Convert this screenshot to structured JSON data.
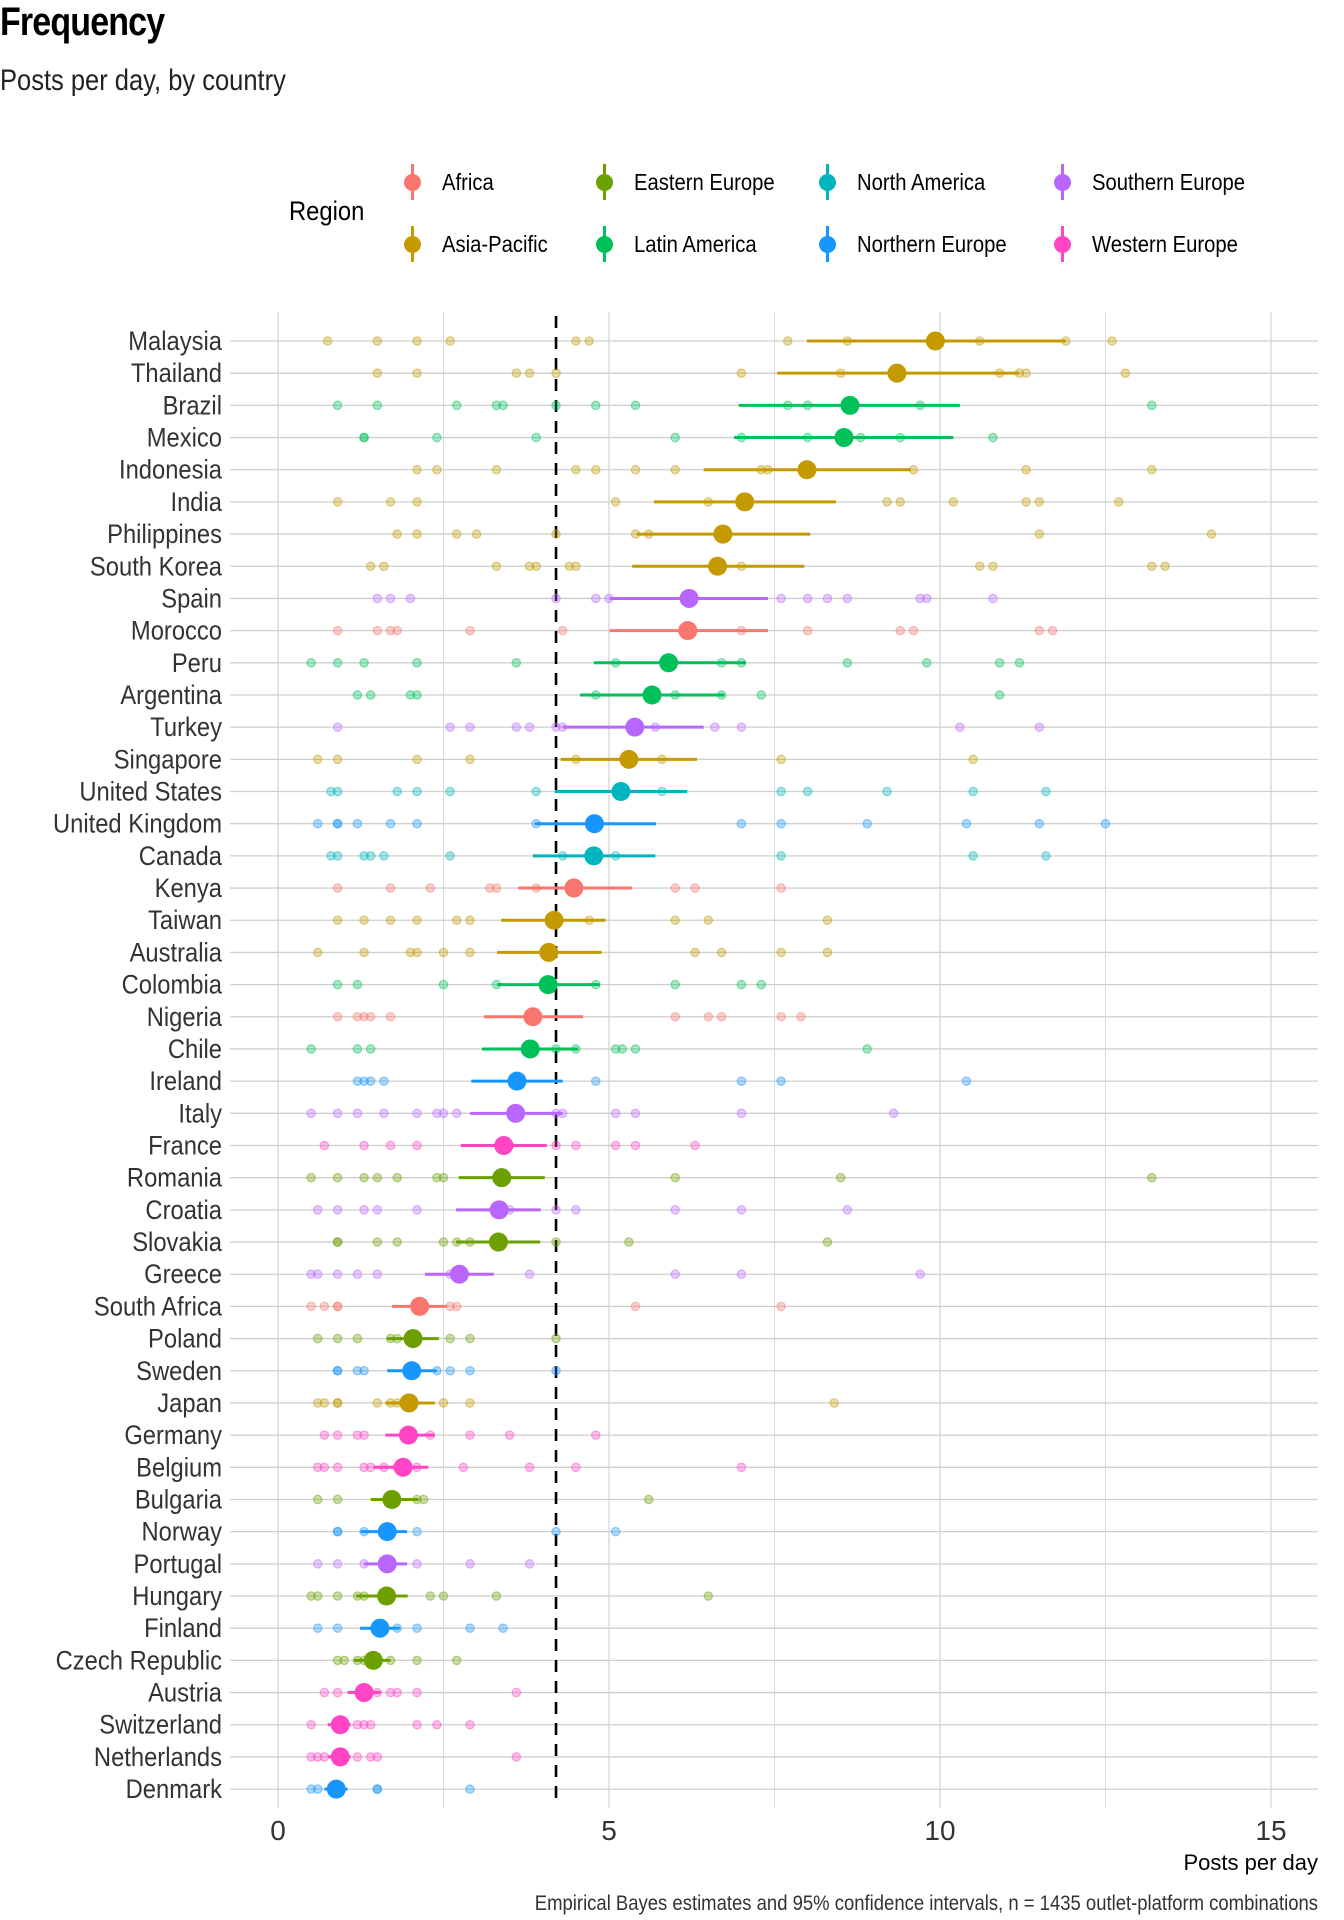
{
  "header": {
    "title": "Frequency",
    "subtitle": "Posts per day, by country",
    "caption": "Empirical Bayes estimates and 95% confidence intervals, n = 1435 outlet-platform combinations"
  },
  "legend": {
    "title": "Region",
    "items": [
      {
        "label": "Africa",
        "color": "#F8766D"
      },
      {
        "label": "Asia-Pacific",
        "color": "#C49A00"
      },
      {
        "label": "Eastern Europe",
        "color": "#6BA000"
      },
      {
        "label": "Latin America",
        "color": "#00C05A"
      },
      {
        "label": "North America",
        "color": "#00B5BE"
      },
      {
        "label": "Northern Europe",
        "color": "#1896FF"
      },
      {
        "label": "Southern Europe",
        "color": "#B966FF"
      },
      {
        "label": "Western Europe",
        "color": "#FF45C5"
      }
    ]
  },
  "chart_data": {
    "type": "scatter",
    "title": "Frequency",
    "subtitle": "Posts per day, by country",
    "xlabel": "Posts per day",
    "ylabel": "",
    "xlim": [
      -0.2,
      15.7
    ],
    "xticks": [
      0,
      5,
      10,
      15
    ],
    "xtick_labels": [
      "0",
      "5",
      "10",
      "15"
    ],
    "grid": true,
    "legend_position": "top",
    "reference_line": {
      "x": 4.2,
      "style": "dashed"
    },
    "caption": "Empirical Bayes estimates and 95% confidence intervals, n = 1435 outlet-platform combinations",
    "rows": [
      {
        "country": "Malaysia",
        "region": "Asia-Pacific",
        "estimate": 9.93,
        "ci": [
          7.99,
          11.9
        ],
        "points": [
          0.75,
          1.5,
          2.1,
          2.6,
          4.5,
          4.7,
          7.7,
          8.6,
          10.6,
          11.9,
          12.6
        ]
      },
      {
        "country": "Thailand",
        "region": "Asia-Pacific",
        "estimate": 9.35,
        "ci": [
          7.54,
          11.2
        ],
        "points": [
          1.5,
          2.1,
          3.6,
          3.8,
          4.2,
          7.0,
          8.5,
          10.9,
          11.2,
          11.3,
          12.8
        ]
      },
      {
        "country": "Brazil",
        "region": "Latin America",
        "estimate": 8.64,
        "ci": [
          6.96,
          10.3
        ],
        "points": [
          0.9,
          1.5,
          2.7,
          3.3,
          3.4,
          4.2,
          4.8,
          5.4,
          7.7,
          8.0,
          9.7,
          13.2
        ]
      },
      {
        "country": "Mexico",
        "region": "Latin America",
        "estimate": 8.55,
        "ci": [
          6.89,
          10.2
        ],
        "points": [
          1.3,
          1.3,
          2.4,
          3.9,
          6.0,
          7.0,
          8.0,
          8.8,
          9.4,
          10.8
        ]
      },
      {
        "country": "Indonesia",
        "region": "Asia-Pacific",
        "estimate": 7.99,
        "ci": [
          6.43,
          9.56
        ],
        "points": [
          2.1,
          2.4,
          3.3,
          4.5,
          4.8,
          5.4,
          6.0,
          7.3,
          7.4,
          9.6,
          11.3,
          13.2
        ]
      },
      {
        "country": "India",
        "region": "Asia-Pacific",
        "estimate": 7.05,
        "ci": [
          5.68,
          8.43
        ],
        "points": [
          0.9,
          1.7,
          2.1,
          5.1,
          6.5,
          9.2,
          9.4,
          10.2,
          11.3,
          11.5,
          12.7
        ]
      },
      {
        "country": "Philippines",
        "region": "Asia-Pacific",
        "estimate": 6.72,
        "ci": [
          5.42,
          8.04
        ],
        "points": [
          1.8,
          2.1,
          2.7,
          3.0,
          4.2,
          5.4,
          5.6,
          11.5,
          14.1
        ]
      },
      {
        "country": "South Korea",
        "region": "Asia-Pacific",
        "estimate": 6.64,
        "ci": [
          5.35,
          7.95
        ],
        "points": [
          1.4,
          1.6,
          3.3,
          3.8,
          3.9,
          4.4,
          4.5,
          7.0,
          10.6,
          10.8,
          13.2,
          13.4
        ]
      },
      {
        "country": "Spain",
        "region": "Southern Europe",
        "estimate": 6.21,
        "ci": [
          5.01,
          7.4
        ],
        "points": [
          1.5,
          1.7,
          2.0,
          4.2,
          4.8,
          5.0,
          7.6,
          8.0,
          8.3,
          8.6,
          9.7,
          9.8,
          10.8
        ]
      },
      {
        "country": "Morocco",
        "region": "Africa",
        "estimate": 6.19,
        "ci": [
          5.01,
          7.4
        ],
        "points": [
          0.9,
          1.5,
          1.7,
          1.8,
          2.9,
          4.3,
          7.0,
          8.0,
          9.4,
          9.6,
          11.5,
          11.7
        ]
      },
      {
        "country": "Peru",
        "region": "Latin America",
        "estimate": 5.9,
        "ci": [
          4.77,
          7.07
        ],
        "points": [
          0.5,
          0.9,
          1.3,
          2.1,
          3.6,
          5.1,
          6.7,
          7.0,
          8.6,
          9.8,
          10.9,
          11.2
        ]
      },
      {
        "country": "Argentina",
        "region": "Latin America",
        "estimate": 5.65,
        "ci": [
          4.56,
          6.74
        ],
        "points": [
          1.2,
          1.4,
          2.0,
          2.1,
          4.8,
          6.0,
          6.7,
          7.3,
          10.9
        ]
      },
      {
        "country": "Turkey",
        "region": "Southern Europe",
        "estimate": 5.39,
        "ci": [
          4.3,
          6.43
        ],
        "points": [
          0.9,
          2.6,
          2.9,
          3.6,
          3.8,
          4.2,
          4.3,
          5.7,
          6.6,
          7.0,
          10.3,
          11.5
        ]
      },
      {
        "country": "Singapore",
        "region": "Asia-Pacific",
        "estimate": 5.3,
        "ci": [
          4.27,
          6.33
        ],
        "points": [
          0.6,
          0.9,
          2.1,
          2.9,
          4.5,
          5.8,
          7.6,
          10.5
        ]
      },
      {
        "country": "United States",
        "region": "North America",
        "estimate": 5.18,
        "ci": [
          4.18,
          6.18
        ],
        "points": [
          0.8,
          0.9,
          1.8,
          2.1,
          2.6,
          3.9,
          5.8,
          7.6,
          8.0,
          9.2,
          10.5,
          11.6
        ]
      },
      {
        "country": "United Kingdom",
        "region": "Northern Europe",
        "estimate": 4.78,
        "ci": [
          3.88,
          5.71
        ],
        "points": [
          0.6,
          0.9,
          0.9,
          1.2,
          1.7,
          2.1,
          3.9,
          7.0,
          7.6,
          8.9,
          10.4,
          11.5,
          12.5
        ]
      },
      {
        "country": "Canada",
        "region": "North America",
        "estimate": 4.77,
        "ci": [
          3.85,
          5.7
        ],
        "points": [
          0.8,
          0.9,
          1.3,
          1.4,
          1.6,
          2.6,
          4.3,
          5.1,
          7.6,
          10.5,
          11.6
        ]
      },
      {
        "country": "Kenya",
        "region": "Africa",
        "estimate": 4.47,
        "ci": [
          3.63,
          5.35
        ],
        "points": [
          0.9,
          1.7,
          2.3,
          3.2,
          3.3,
          3.9,
          6.0,
          6.3,
          7.6
        ]
      },
      {
        "country": "Taiwan",
        "region": "Asia-Pacific",
        "estimate": 4.17,
        "ci": [
          3.37,
          4.95
        ],
        "points": [
          0.9,
          1.3,
          1.7,
          2.1,
          2.7,
          2.9,
          4.7,
          6.0,
          6.5,
          8.3
        ]
      },
      {
        "country": "Australia",
        "region": "Asia-Pacific",
        "estimate": 4.09,
        "ci": [
          3.31,
          4.89
        ],
        "points": [
          0.6,
          1.3,
          2.0,
          2.1,
          2.5,
          2.9,
          6.3,
          6.7,
          7.6,
          8.3
        ]
      },
      {
        "country": "Colombia",
        "region": "Latin America",
        "estimate": 4.08,
        "ci": [
          3.31,
          4.86
        ],
        "points": [
          0.9,
          1.2,
          2.5,
          3.3,
          4.1,
          4.8,
          6.0,
          7.0,
          7.3
        ]
      },
      {
        "country": "Nigeria",
        "region": "Africa",
        "estimate": 3.85,
        "ci": [
          3.11,
          4.61
        ],
        "points": [
          0.9,
          1.2,
          1.3,
          1.4,
          1.7,
          6.0,
          6.5,
          6.7,
          7.6,
          7.9
        ]
      },
      {
        "country": "Chile",
        "region": "Latin America",
        "estimate": 3.81,
        "ci": [
          3.08,
          4.53
        ],
        "points": [
          0.5,
          1.2,
          1.4,
          4.2,
          4.5,
          5.1,
          5.2,
          5.4,
          8.9
        ]
      },
      {
        "country": "Ireland",
        "region": "Northern Europe",
        "estimate": 3.61,
        "ci": [
          2.92,
          4.3
        ],
        "points": [
          1.2,
          1.3,
          1.4,
          1.6,
          4.8,
          7.0,
          7.6,
          10.4
        ]
      },
      {
        "country": "Italy",
        "region": "Southern Europe",
        "estimate": 3.59,
        "ci": [
          2.9,
          4.3
        ],
        "points": [
          0.5,
          0.9,
          1.2,
          1.6,
          2.1,
          2.4,
          2.5,
          2.7,
          4.2,
          4.3,
          5.1,
          5.4,
          7.0,
          9.3
        ]
      },
      {
        "country": "France",
        "region": "Western Europe",
        "estimate": 3.41,
        "ci": [
          2.76,
          4.06
        ],
        "points": [
          0.7,
          1.3,
          1.7,
          2.1,
          3.5,
          4.2,
          4.5,
          5.1,
          5.4,
          6.3
        ]
      },
      {
        "country": "Romania",
        "region": "Eastern Europe",
        "estimate": 3.38,
        "ci": [
          2.73,
          4.03
        ],
        "points": [
          0.5,
          0.9,
          1.3,
          1.5,
          1.8,
          2.4,
          2.5,
          6.0,
          8.5,
          13.2
        ]
      },
      {
        "country": "Croatia",
        "region": "Southern Europe",
        "estimate": 3.34,
        "ci": [
          2.69,
          3.97
        ],
        "points": [
          0.6,
          0.9,
          1.3,
          1.5,
          2.1,
          3.5,
          4.2,
          4.5,
          6.0,
          7.0,
          8.6
        ]
      },
      {
        "country": "Slovakia",
        "region": "Eastern Europe",
        "estimate": 3.33,
        "ci": [
          2.69,
          3.96
        ],
        "points": [
          0.9,
          0.9,
          1.5,
          1.8,
          2.5,
          2.7,
          2.9,
          4.2,
          5.3,
          8.3
        ]
      },
      {
        "country": "Greece",
        "region": "Southern Europe",
        "estimate": 2.74,
        "ci": [
          2.22,
          3.26
        ],
        "points": [
          0.5,
          0.6,
          0.9,
          1.2,
          1.5,
          2.6,
          3.8,
          6.0,
          7.0,
          9.7
        ]
      },
      {
        "country": "South Africa",
        "region": "Africa",
        "estimate": 2.14,
        "ci": [
          1.72,
          2.55
        ],
        "points": [
          0.5,
          0.7,
          0.9,
          0.9,
          2.6,
          2.7,
          5.4,
          7.6
        ]
      },
      {
        "country": "Poland",
        "region": "Eastern Europe",
        "estimate": 2.04,
        "ci": [
          1.65,
          2.43
        ],
        "points": [
          0.6,
          0.9,
          1.2,
          1.7,
          1.8,
          2.6,
          2.9,
          4.2
        ]
      },
      {
        "country": "Sweden",
        "region": "Northern Europe",
        "estimate": 2.02,
        "ci": [
          1.65,
          2.4
        ],
        "points": [
          0.9,
          0.9,
          1.2,
          1.3,
          2.4,
          2.6,
          2.9,
          4.2
        ]
      },
      {
        "country": "Japan",
        "region": "Asia-Pacific",
        "estimate": 1.98,
        "ci": [
          1.62,
          2.37
        ],
        "points": [
          0.6,
          0.7,
          0.9,
          0.9,
          1.5,
          1.7,
          1.8,
          2.5,
          2.9,
          8.4
        ]
      },
      {
        "country": "Germany",
        "region": "Western Europe",
        "estimate": 1.97,
        "ci": [
          1.62,
          2.37
        ],
        "points": [
          0.7,
          0.9,
          1.2,
          1.3,
          2.3,
          2.9,
          3.5,
          4.8
        ]
      },
      {
        "country": "Belgium",
        "region": "Western Europe",
        "estimate": 1.89,
        "ci": [
          1.44,
          2.27
        ],
        "points": [
          0.6,
          0.7,
          0.9,
          1.3,
          1.4,
          1.6,
          1.8,
          2.1,
          2.8,
          3.8,
          4.5,
          7.0
        ]
      },
      {
        "country": "Bulgaria",
        "region": "Eastern Europe",
        "estimate": 1.72,
        "ci": [
          1.4,
          2.12
        ],
        "points": [
          0.6,
          0.9,
          2.1,
          2.2,
          5.6
        ]
      },
      {
        "country": "Norway",
        "region": "Northern Europe",
        "estimate": 1.65,
        "ci": [
          1.25,
          1.95
        ],
        "points": [
          0.9,
          0.9,
          1.3,
          2.1,
          4.2,
          5.1
        ]
      },
      {
        "country": "Portugal",
        "region": "Southern Europe",
        "estimate": 1.65,
        "ci": [
          1.3,
          1.95
        ],
        "points": [
          0.6,
          0.9,
          1.3,
          2.1,
          2.9,
          3.8
        ]
      },
      {
        "country": "Hungary",
        "region": "Eastern Europe",
        "estimate": 1.64,
        "ci": [
          1.18,
          1.96
        ],
        "points": [
          0.5,
          0.6,
          0.9,
          1.2,
          1.3,
          2.3,
          2.5,
          3.3,
          6.5
        ]
      },
      {
        "country": "Finland",
        "region": "Northern Europe",
        "estimate": 1.54,
        "ci": [
          1.24,
          1.84
        ],
        "points": [
          0.6,
          0.9,
          1.8,
          2.1,
          2.9,
          3.4
        ]
      },
      {
        "country": "Czech Republic",
        "region": "Eastern Europe",
        "estimate": 1.44,
        "ci": [
          1.15,
          1.7
        ],
        "points": [
          0.9,
          1.0,
          1.2,
          1.3,
          1.7,
          2.1,
          2.7
        ]
      },
      {
        "country": "Austria",
        "region": "Western Europe",
        "estimate": 1.3,
        "ci": [
          1.05,
          1.55
        ],
        "points": [
          0.7,
          0.9,
          1.5,
          1.7,
          1.8,
          2.1,
          3.6
        ]
      },
      {
        "country": "Switzerland",
        "region": "Western Europe",
        "estimate": 0.94,
        "ci": [
          0.75,
          1.1
        ],
        "points": [
          0.5,
          1.2,
          1.3,
          1.4,
          2.1,
          2.4,
          2.9
        ]
      },
      {
        "country": "Netherlands",
        "region": "Western Europe",
        "estimate": 0.94,
        "ci": [
          0.75,
          1.1
        ],
        "points": [
          0.5,
          0.6,
          0.7,
          1.2,
          1.4,
          1.5,
          3.6
        ]
      },
      {
        "country": "Denmark",
        "region": "Northern Europe",
        "estimate": 0.88,
        "ci": [
          0.7,
          1.05
        ],
        "points": [
          0.5,
          0.6,
          1.5,
          1.5,
          2.9
        ]
      }
    ]
  }
}
